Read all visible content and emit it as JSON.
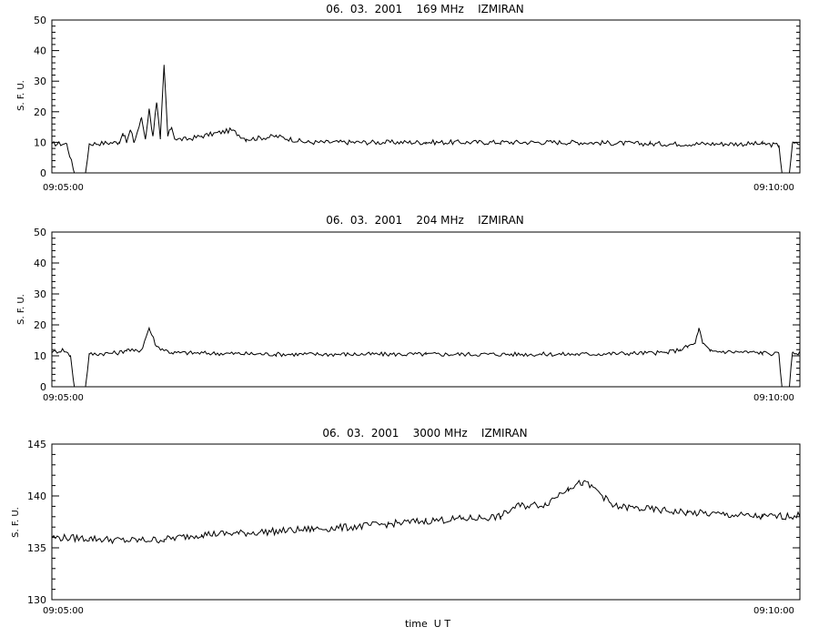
{
  "x_axis_label": "time  U T",
  "chart_data": [
    {
      "type": "line",
      "title": "06.  03.  2001    169 MHz    IZMIRAN",
      "ylabel": "S. F. U.",
      "ylim": [
        0,
        50
      ],
      "yticks": [
        0,
        10,
        20,
        30,
        40,
        50
      ],
      "xlim": [
        "09:05:00",
        "09:10:00"
      ],
      "xtick_labels": [
        "09:05:00",
        "09:10:00"
      ],
      "baseline": 9.5,
      "noise": 0.8,
      "series_points": [
        [
          0,
          9.5
        ],
        [
          0.02,
          9.5
        ],
        [
          0.03,
          0
        ],
        [
          0.045,
          0
        ],
        [
          0.05,
          9.5
        ],
        [
          0.09,
          10
        ],
        [
          0.095,
          13
        ],
        [
          0.1,
          10
        ],
        [
          0.105,
          14
        ],
        [
          0.11,
          10
        ],
        [
          0.12,
          18
        ],
        [
          0.125,
          11
        ],
        [
          0.13,
          21
        ],
        [
          0.135,
          12
        ],
        [
          0.14,
          23
        ],
        [
          0.145,
          11
        ],
        [
          0.15,
          35
        ],
        [
          0.155,
          12
        ],
        [
          0.16,
          15
        ],
        [
          0.165,
          11
        ],
        [
          0.18,
          11
        ],
        [
          0.2,
          12
        ],
        [
          0.24,
          14
        ],
        [
          0.26,
          11
        ],
        [
          0.3,
          12
        ],
        [
          0.34,
          10
        ],
        [
          0.4,
          10
        ],
        [
          0.5,
          10
        ],
        [
          0.6,
          10
        ],
        [
          0.7,
          10
        ],
        [
          0.8,
          9.5
        ],
        [
          0.9,
          9.5
        ],
        [
          0.95,
          9.5
        ],
        [
          0.972,
          9
        ],
        [
          0.976,
          0
        ],
        [
          0.986,
          0
        ],
        [
          0.99,
          9.5
        ],
        [
          1,
          9.5
        ]
      ]
    },
    {
      "type": "line",
      "title": "06.  03.  2001    204 MHz    IZMIRAN",
      "ylabel": "S. F. U.",
      "ylim": [
        0,
        50
      ],
      "yticks": [
        0,
        10,
        20,
        30,
        40,
        50
      ],
      "xlim": [
        "09:05:00",
        "09:10:00"
      ],
      "xtick_labels": [
        "09:05:00",
        "09:10:00"
      ],
      "baseline": 10.5,
      "noise": 0.7,
      "series_points": [
        [
          0,
          11
        ],
        [
          0.015,
          12
        ],
        [
          0.025,
          10
        ],
        [
          0.03,
          0
        ],
        [
          0.045,
          0
        ],
        [
          0.05,
          10.5
        ],
        [
          0.09,
          11
        ],
        [
          0.1,
          12
        ],
        [
          0.11,
          11.5
        ],
        [
          0.12,
          12
        ],
        [
          0.13,
          19
        ],
        [
          0.14,
          13
        ],
        [
          0.16,
          11
        ],
        [
          0.3,
          10.5
        ],
        [
          0.5,
          10.5
        ],
        [
          0.7,
          10.5
        ],
        [
          0.82,
          11
        ],
        [
          0.84,
          12
        ],
        [
          0.85,
          13
        ],
        [
          0.86,
          14
        ],
        [
          0.865,
          19
        ],
        [
          0.87,
          14
        ],
        [
          0.88,
          11.5
        ],
        [
          0.95,
          11
        ],
        [
          0.972,
          10.5
        ],
        [
          0.976,
          0
        ],
        [
          0.986,
          0
        ],
        [
          0.99,
          11
        ],
        [
          1,
          11
        ]
      ]
    },
    {
      "type": "line",
      "title": "06.  03.  2001    3000 MHz    IZMIRAN",
      "ylabel": "S. F. U.",
      "ylim": [
        130,
        145
      ],
      "yticks": [
        130,
        135,
        140,
        145
      ],
      "xlim": [
        "09:05:00",
        "09:10:00"
      ],
      "xtick_labels": [
        "09:05:00",
        "09:10:00"
      ],
      "baseline": 0,
      "noise": 0.35,
      "series_points": [
        [
          0,
          136
        ],
        [
          0.05,
          135.9
        ],
        [
          0.1,
          135.7
        ],
        [
          0.15,
          135.8
        ],
        [
          0.2,
          136.3
        ],
        [
          0.25,
          136.4
        ],
        [
          0.3,
          136.6
        ],
        [
          0.35,
          136.8
        ],
        [
          0.4,
          137.0
        ],
        [
          0.45,
          137.3
        ],
        [
          0.5,
          137.6
        ],
        [
          0.55,
          137.8
        ],
        [
          0.6,
          138.0
        ],
        [
          0.62,
          139
        ],
        [
          0.66,
          139.2
        ],
        [
          0.69,
          140.8
        ],
        [
          0.71,
          141.3
        ],
        [
          0.73,
          140.5
        ],
        [
          0.75,
          139
        ],
        [
          0.8,
          138.7
        ],
        [
          0.85,
          138.4
        ],
        [
          0.9,
          138.2
        ],
        [
          0.95,
          138
        ],
        [
          1,
          138.1
        ]
      ]
    }
  ]
}
